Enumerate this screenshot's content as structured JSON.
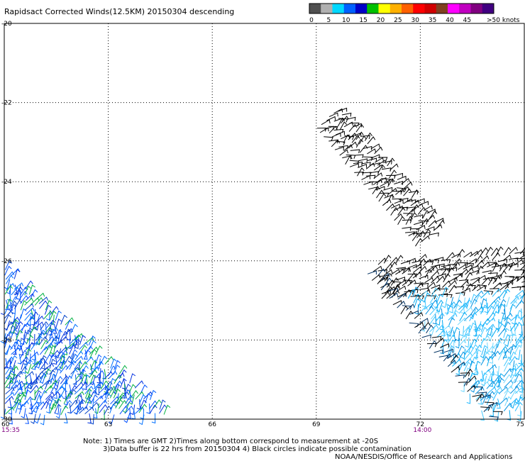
{
  "title": "Rapidsact Corrected Winds(12.5KM) 20150304 descending",
  "legend": {
    "colors": [
      "#505050",
      "#b0b0b0",
      "#00d8ff",
      "#0060ff",
      "#0000c8",
      "#00c000",
      "#ffff00",
      "#ffb000",
      "#ff6000",
      "#ff0000",
      "#d00000",
      "#804020",
      "#ff00ff",
      "#c000c0",
      "#800080",
      "#400080"
    ],
    "labels": [
      "0",
      "5",
      "10",
      "15",
      "20",
      "25",
      "30",
      "35",
      "40",
      "45",
      ">50 knots"
    ]
  },
  "chart_data": {
    "type": "scatter",
    "title": "Rapidsact Corrected Winds(12.5KM) 20150304 descending",
    "xlim": [
      60,
      75
    ],
    "ylim": [
      -30,
      -20
    ],
    "x_ticks": [
      "60",
      "63",
      "66",
      "69",
      "72",
      "75"
    ],
    "y_ticks": [
      "-20",
      "-22",
      "-24",
      "-26",
      "-28",
      "-30"
    ],
    "grid": true,
    "grid_style": "dotted",
    "time_labels": [
      {
        "text": "15:35",
        "lon": 60
      },
      {
        "text": "14:00",
        "lon": 72
      }
    ],
    "swaths": [
      {
        "name": "west",
        "region": "triangle",
        "corners": [
          [
            60,
            -26.2
          ],
          [
            60,
            -29.9
          ],
          [
            64.7,
            -29.9
          ]
        ],
        "speed_range_knots": [
          10,
          20
        ],
        "dominant_color": "#0060ff"
      },
      {
        "name": "east-black-north",
        "region": "band",
        "from": [
          69.3,
          -22.4
        ],
        "to": [
          72.2,
          -25.4
        ],
        "speed_range_knots": [
          0,
          5
        ],
        "dominant_color": "#000000"
      },
      {
        "name": "east-black-east",
        "region": "band",
        "from": [
          70.8,
          -26.5
        ],
        "to": [
          75,
          -26.2
        ],
        "speed_range_knots": [
          0,
          5
        ],
        "dominant_color": "#000000"
      },
      {
        "name": "east-blue",
        "region": "quad",
        "corners": [
          [
            71.6,
            -26.9
          ],
          [
            75,
            -26.9
          ],
          [
            75,
            -29.9
          ],
          [
            73.8,
            -29.9
          ]
        ],
        "speed_range_knots": [
          5,
          15
        ],
        "dominant_color": "#00b0f0"
      },
      {
        "name": "east-black-edge",
        "region": "band",
        "from": [
          70.5,
          -26.3
        ],
        "to": [
          74.0,
          -29.9
        ],
        "speed_range_knots": [
          0,
          5
        ],
        "dominant_color": "#000000"
      }
    ]
  },
  "notes": {
    "line1": "Note: 1) Times are GMT 2)Times along bottom correspond to measurement at -20S",
    "line2": "3)Data buffer is 22 hrs from 20150304 4) Black circles indicate possible contamination",
    "line3": "NOAA/NESDIS/Office of Research and Applications"
  }
}
